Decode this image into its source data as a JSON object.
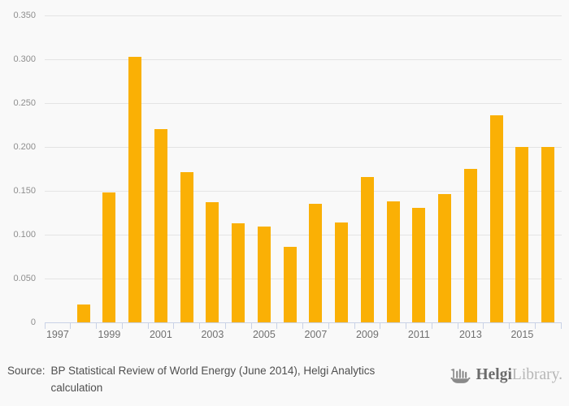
{
  "chart_data": {
    "type": "bar",
    "title": "",
    "xlabel": "",
    "ylabel": "",
    "categories": [
      1997,
      1998,
      1999,
      2000,
      2001,
      2002,
      2003,
      2004,
      2005,
      2006,
      2007,
      2008,
      2009,
      2010,
      2011,
      2012,
      2013,
      2014,
      2015,
      2016
    ],
    "values": [
      null,
      0.02,
      0.148,
      0.303,
      0.22,
      0.171,
      0.137,
      0.113,
      0.109,
      0.086,
      0.135,
      0.114,
      0.166,
      0.138,
      0.131,
      0.146,
      0.175,
      0.236,
      0.2,
      0.2
    ],
    "bar_color": "#FAB005",
    "ylim": [
      0,
      0.35
    ],
    "ytick_labels": [
      "0",
      "0.050",
      "0.100",
      "0.150",
      "0.200",
      "0.250",
      "0.300",
      "0.350"
    ],
    "xtick_labels": [
      "1997",
      "1999",
      "2001",
      "2003",
      "2005",
      "2007",
      "2009",
      "2011",
      "2013",
      "2015"
    ],
    "grid": "horizontal",
    "legend": "none"
  },
  "colors": {
    "background": "#F9F9F9",
    "bar": "#FAB005",
    "gridline": "#E4E4E4",
    "axis": "#C9D2E6",
    "ytick_text": "#8E8E8E",
    "xtick_text": "#707070",
    "source_text": "#4F4F4F",
    "logo_dark": "#6B6B6B",
    "logo_light": "#B6B6B6"
  },
  "footer": {
    "source_label": "Source:",
    "source_lines": [
      "BP Statistical Review of World Energy (June 2014), Helgi Analytics",
      "calculation"
    ],
    "logo": {
      "icon": "helgi-ship-icon",
      "brand_bold": "Helgi",
      "brand_light": "Library."
    }
  }
}
